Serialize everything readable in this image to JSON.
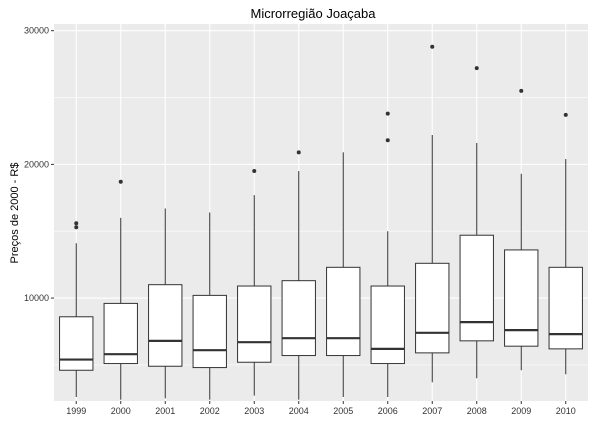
{
  "chart_data": {
    "type": "boxplot",
    "title": "Microrregião  Joaçaba",
    "xlabel": "",
    "ylabel": "Preços de 2000 - R$",
    "ylim": [
      2300,
      30500
    ],
    "yticks": [
      10000,
      20000,
      30000
    ],
    "yticklabels": [
      "10000",
      "20000",
      "30000"
    ],
    "grid": true,
    "colors": {
      "panel": "#ebebeb",
      "grid": "#ffffff",
      "box_fill": "#ffffff",
      "box_line": "#333333"
    },
    "categories": [
      "1999",
      "2000",
      "2001",
      "2002",
      "2003",
      "2004",
      "2005",
      "2006",
      "2007",
      "2008",
      "2009",
      "2010"
    ],
    "boxes": [
      {
        "min": 2600,
        "q1": 4600,
        "median": 5400,
        "q3": 8600,
        "max": 14100,
        "outliers": [
          15300,
          15600
        ]
      },
      {
        "min": 2400,
        "q1": 5100,
        "median": 5800,
        "q3": 9600,
        "max": 16000,
        "outliers": [
          18700
        ]
      },
      {
        "min": 2500,
        "q1": 4900,
        "median": 6800,
        "q3": 11000,
        "max": 16700,
        "outliers": []
      },
      {
        "min": 2400,
        "q1": 4800,
        "median": 6100,
        "q3": 10200,
        "max": 16400,
        "outliers": []
      },
      {
        "min": 2700,
        "q1": 5200,
        "median": 6700,
        "q3": 10900,
        "max": 17700,
        "outliers": [
          19500
        ]
      },
      {
        "min": 2400,
        "q1": 5700,
        "median": 7000,
        "q3": 11300,
        "max": 19500,
        "outliers": [
          20900
        ]
      },
      {
        "min": 2600,
        "q1": 5700,
        "median": 7000,
        "q3": 12300,
        "max": 20900,
        "outliers": []
      },
      {
        "min": 2600,
        "q1": 5100,
        "median": 6200,
        "q3": 10900,
        "max": 15000,
        "outliers": [
          21800,
          23800
        ]
      },
      {
        "min": 3700,
        "q1": 5900,
        "median": 7400,
        "q3": 12600,
        "max": 22200,
        "outliers": [
          28800
        ]
      },
      {
        "min": 4000,
        "q1": 6800,
        "median": 8200,
        "q3": 14700,
        "max": 21600,
        "outliers": [
          27200
        ]
      },
      {
        "min": 4600,
        "q1": 6400,
        "median": 7600,
        "q3": 13600,
        "max": 19300,
        "outliers": [
          25500
        ]
      },
      {
        "min": 4300,
        "q1": 6200,
        "median": 7300,
        "q3": 12300,
        "max": 20400,
        "outliers": [
          23700
        ]
      }
    ]
  }
}
